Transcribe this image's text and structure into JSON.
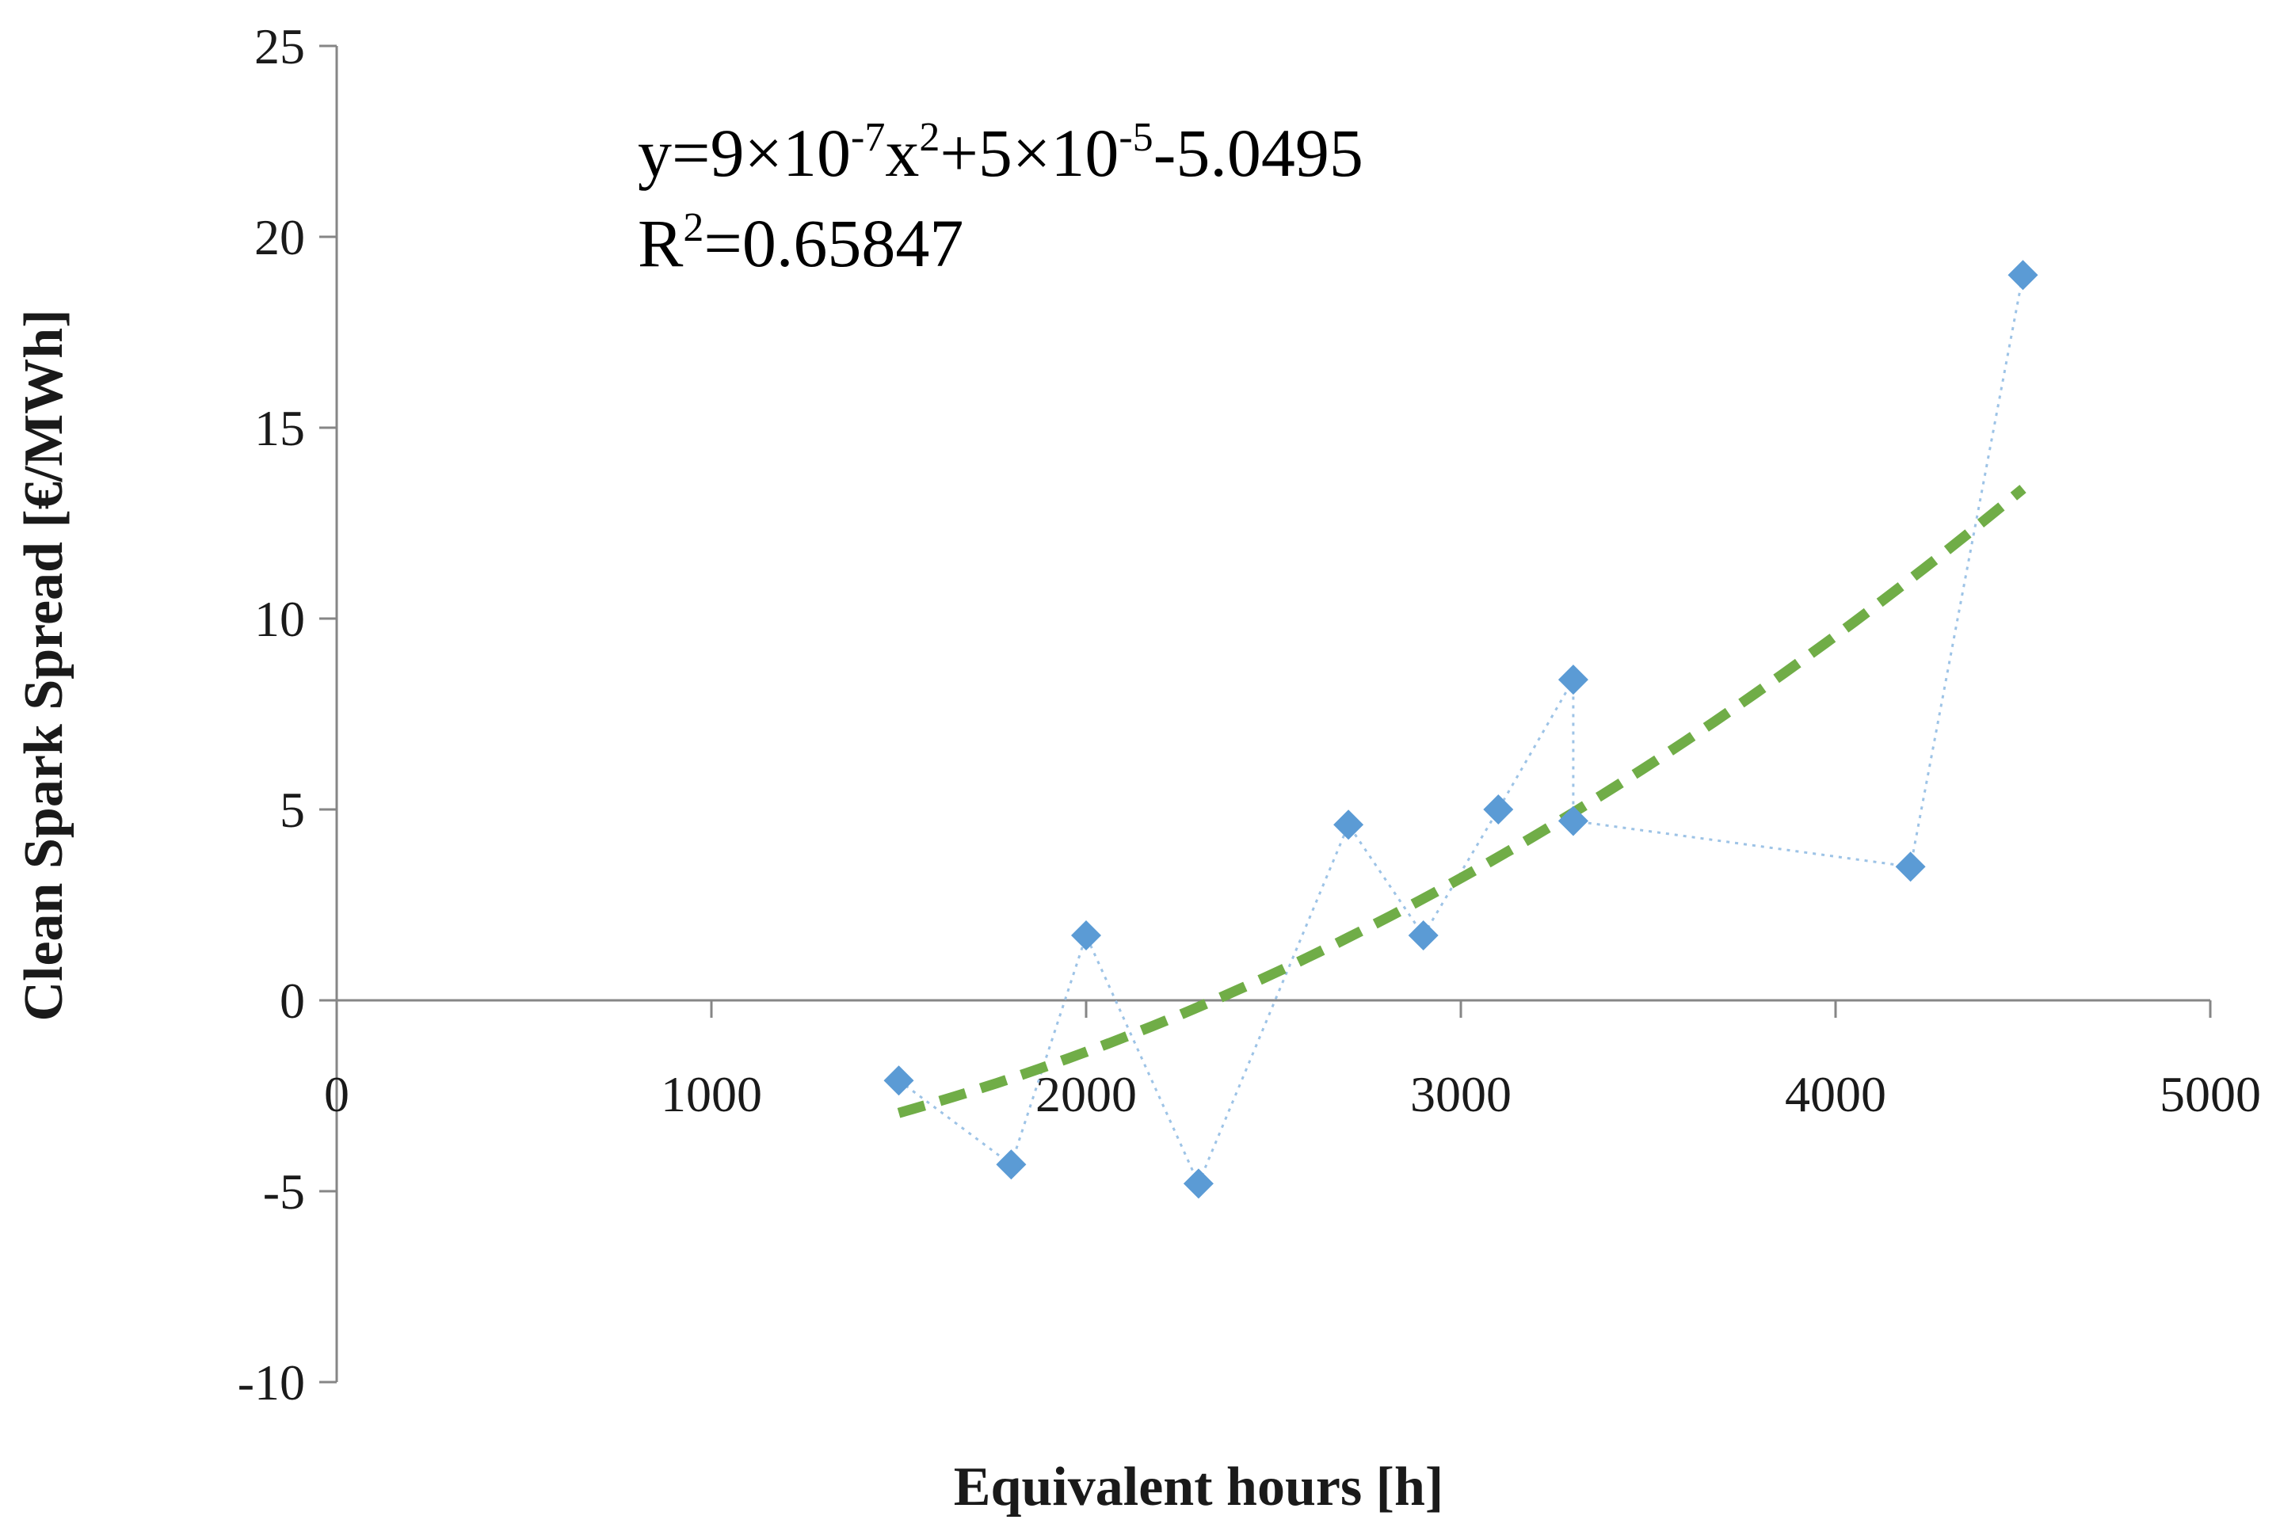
{
  "chart_data": {
    "type": "scatter",
    "title": "",
    "xlabel": "Equivalent hours [h]",
    "ylabel": "Clean Spark Spread [€/MWh]",
    "xlim": [
      0,
      5000
    ],
    "ylim": [
      -10,
      25
    ],
    "x_ticks": [
      0,
      1000,
      2000,
      3000,
      4000,
      5000
    ],
    "y_ticks": [
      -10,
      -5,
      0,
      5,
      10,
      15,
      20,
      25
    ],
    "x_tick_labels": [
      "0",
      "1000",
      "2000",
      "3000",
      "4000",
      "5000"
    ],
    "y_tick_labels": [
      "-10",
      "-5",
      "0",
      "5",
      "10",
      "15",
      "20",
      "25"
    ],
    "grid": false,
    "legend": "none",
    "series": [
      {
        "marker": "diamond",
        "connected_by": "dotted line",
        "color": "#5b9bd5",
        "x": [
          1500,
          1800,
          2000,
          2300,
          2700,
          2900,
          3100,
          3300,
          3300,
          4200,
          4500
        ],
        "y": [
          -2.1,
          -4.3,
          1.7,
          -4.8,
          4.6,
          1.7,
          5.0,
          8.4,
          4.7,
          3.5,
          19.0
        ]
      }
    ],
    "trendline": {
      "type": "polynomial",
      "order": 2,
      "color": "#70ad47",
      "style": "dashed",
      "x_range": [
        1500,
        4500
      ],
      "coefficients": {
        "a": 9e-07,
        "b": 5e-05,
        "c": -5.0495
      }
    },
    "annotation": {
      "equation_parts": {
        "p1": "y=9×10",
        "e1": "-7",
        "p2": "x",
        "e2": "2",
        "p3": "+5×10",
        "e3": "-5",
        "p4": "-5.0495"
      },
      "r2_parts": {
        "p1": "R",
        "e1": "2",
        "p2": "=0.65847"
      }
    }
  }
}
